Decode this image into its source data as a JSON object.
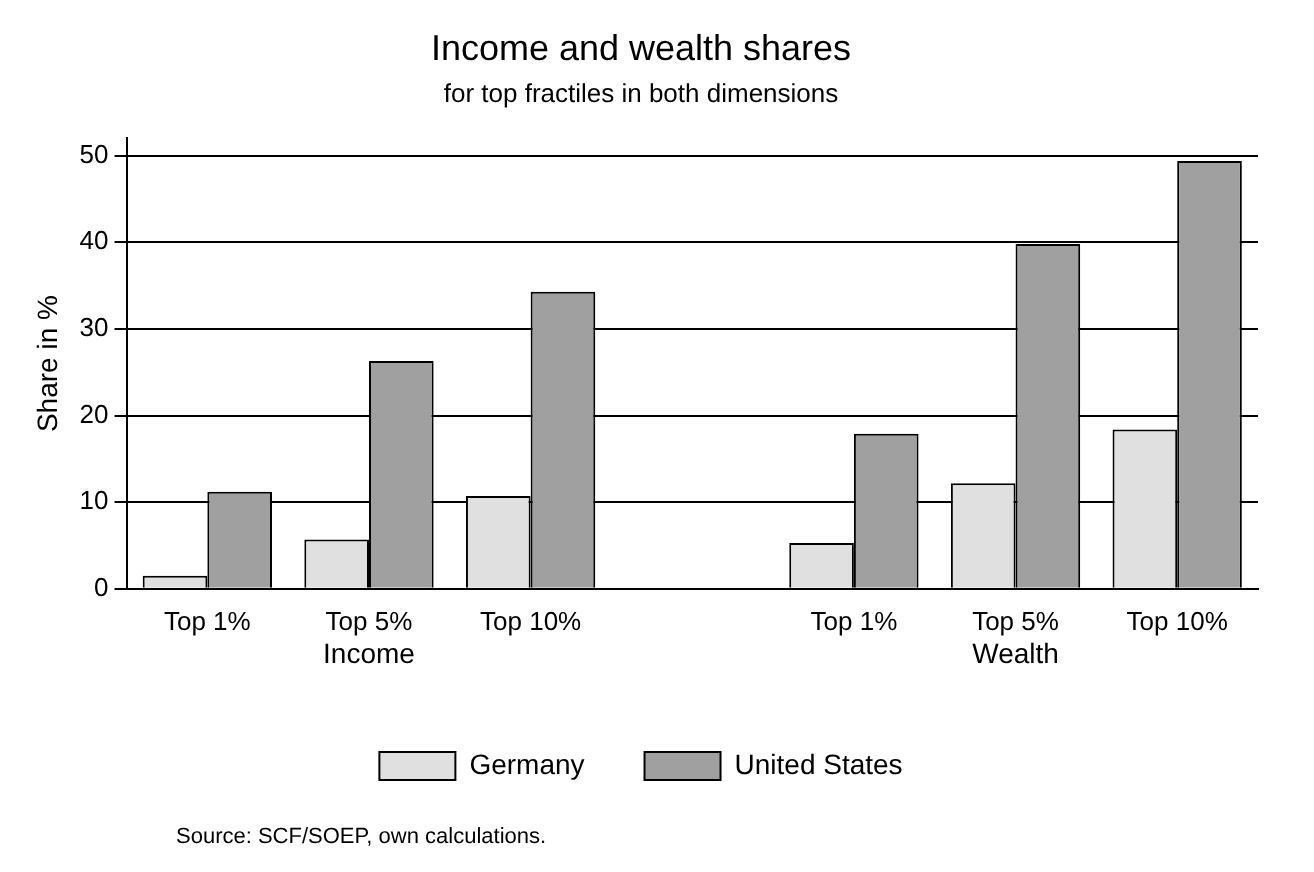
{
  "chart_data": {
    "type": "bar",
    "title": "Income and wealth shares",
    "subtitle": "for top fractiles in both dimensions",
    "ylabel": "Share in %",
    "categories": [
      "Top 1%",
      "Top 5%",
      "Top 10%",
      null,
      "Top 1%",
      "Top 5%",
      "Top 10%"
    ],
    "series": [
      {
        "name": "Germany",
        "color": "#e0e0e0",
        "values": [
          1.5,
          5.7,
          10.7,
          null,
          5.3,
          12.2,
          18.4
        ]
      },
      {
        "name": "United States",
        "color": "#a0a0a0",
        "values": [
          11.2,
          26.3,
          34.3,
          null,
          17.9,
          39.8,
          49.4
        ]
      }
    ],
    "ylim": [
      0,
      52
    ],
    "yticks": [
      0,
      10,
      20,
      30,
      40,
      50
    ],
    "grid": "y",
    "legend": "bottom",
    "annotations": [
      "Income",
      "Wealth",
      "Source: SCF/SOEP, own calculations."
    ]
  }
}
